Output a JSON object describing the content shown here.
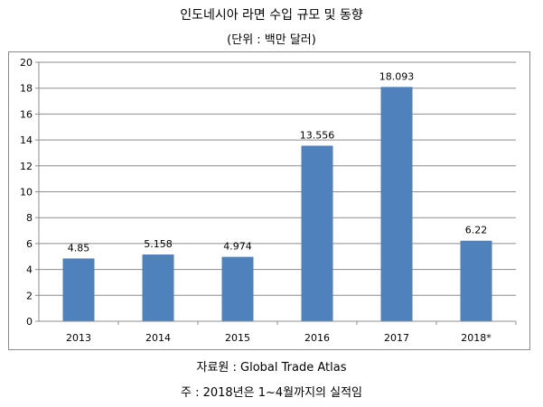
{
  "title": "인도네시아 라면 수입 규모 및 동향",
  "subtitle": "(단위 : 백만 달러)",
  "source": "자료원 : Global Trade Atlas",
  "note": "주 : 2018년은 1~4월까지의 실적임",
  "colors": {
    "bar": "#4f81bd",
    "grid": "#8c8c8c",
    "axis": "#8c8c8c"
  },
  "chart_data": {
    "type": "bar",
    "title": "인도네시아 라면 수입 규모 및 동향",
    "subtitle": "(단위 : 백만 달러)",
    "categories": [
      "2013",
      "2014",
      "2015",
      "2016",
      "2017",
      "2018*"
    ],
    "values": [
      4.85,
      5.158,
      4.974,
      13.556,
      18.093,
      6.22
    ],
    "data_labels": [
      "4.85",
      "5.158",
      "4.974",
      "13.556",
      "18.093",
      "6.22"
    ],
    "ylim": [
      0,
      20
    ],
    "yticks": [
      0,
      2,
      4,
      6,
      8,
      10,
      12,
      14,
      16,
      18,
      20
    ],
    "xlabel": "",
    "ylabel": "",
    "grid": true,
    "legend": "none"
  }
}
